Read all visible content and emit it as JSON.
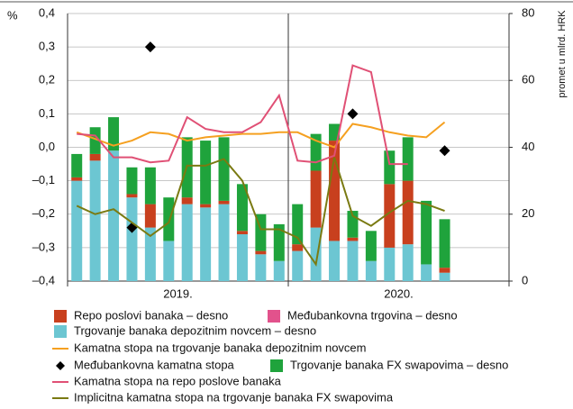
{
  "chart_data": {
    "type": "bar_line",
    "y_unit": "%",
    "y2_label": "promet u mlrd. HRK",
    "x_labels": [
      "2019.",
      "2020."
    ],
    "categories": [
      null,
      null,
      null,
      null,
      null,
      null,
      null,
      null,
      null,
      null,
      null,
      null,
      null,
      null,
      null,
      null,
      null,
      null,
      null,
      null,
      null,
      null,
      null,
      null
    ],
    "ylim": [
      -0.4,
      0.4
    ],
    "yticks": [
      {
        "value": 0.4,
        "label": "0,4"
      },
      {
        "value": 0.3,
        "label": "0,3"
      },
      {
        "value": 0.2,
        "label": "0,2"
      },
      {
        "value": 0.1,
        "label": "0,1"
      },
      {
        "value": 0.0,
        "label": "0,0"
      },
      {
        "value": -0.1,
        "label": "–0,1"
      },
      {
        "value": -0.2,
        "label": "–0,2"
      },
      {
        "value": -0.3,
        "label": "–0,3"
      },
      {
        "value": -0.4,
        "label": "–0,4"
      }
    ],
    "y2lim": [
      0,
      80
    ],
    "y2ticks": [
      0,
      20,
      40,
      60,
      80
    ],
    "grid": true,
    "series": [
      {
        "name": "Trgovanje banaka depozitnim novcem – desno",
        "kind": "bar",
        "axis": "y2",
        "color": "#6cc6d2",
        "values": [
          30,
          36,
          39,
          25,
          16,
          12,
          23,
          22,
          23,
          14,
          8,
          6,
          9,
          16,
          12,
          12,
          6,
          10,
          11,
          5,
          2.5,
          null,
          null,
          null
        ]
      },
      {
        "name": "Repo poslovi banaka – desno",
        "kind": "bar",
        "axis": "y2",
        "color": "#c8401e",
        "values": [
          1,
          2,
          0,
          1,
          7,
          0,
          2,
          1,
          1,
          1,
          1,
          0,
          2,
          17,
          30,
          1,
          0,
          19,
          19,
          0,
          1.5,
          null,
          null,
          null
        ]
      },
      {
        "name": "Međubankovna trgovina – desno",
        "kind": "bar",
        "axis": "y2",
        "color": "#e2528c",
        "values": [
          0,
          0,
          0,
          0,
          0,
          0,
          0,
          0,
          0,
          0,
          0,
          0,
          0,
          0,
          0,
          0,
          0,
          0,
          0,
          0,
          0,
          null,
          null,
          null
        ]
      },
      {
        "name": "Trgovanje banaka FX swapovima – desno",
        "kind": "bar",
        "axis": "y2",
        "color": "#1fa33c",
        "values": [
          7,
          8,
          10,
          8,
          11,
          13,
          18,
          19,
          19,
          14,
          11,
          11,
          12,
          11,
          5,
          8,
          9,
          10,
          13,
          19,
          14.5,
          null,
          null,
          null
        ]
      },
      {
        "name": "Kamatna stopa na trgovanje banaka depozitnim novcem",
        "kind": "line",
        "color": "#f5a020",
        "values": [
          0.045,
          0.025,
          0.005,
          0.02,
          0.045,
          0.04,
          0.02,
          0.03,
          0.035,
          0.04,
          0.04,
          0.045,
          0.045,
          0.02,
          0.0,
          0.07,
          0.06,
          0.045,
          0.035,
          0.03,
          0.075,
          null,
          null,
          null
        ]
      },
      {
        "name": "Međubankovna kamatna stopa",
        "kind": "point",
        "color": "#000000",
        "values": [
          null,
          null,
          null,
          -0.24,
          0.3,
          null,
          null,
          null,
          null,
          null,
          null,
          null,
          null,
          null,
          null,
          0.1,
          null,
          null,
          null,
          null,
          -0.01,
          null,
          null,
          null
        ]
      },
      {
        "name": "Kamatna stopa na repo poslove banaka",
        "kind": "line",
        "color": "#e05075",
        "values": [
          0.04,
          0.035,
          -0.03,
          -0.03,
          -0.045,
          -0.04,
          0.09,
          0.055,
          0.045,
          0.045,
          0.075,
          0.155,
          -0.04,
          -0.045,
          -0.025,
          0.245,
          0.225,
          -0.05,
          -0.05,
          null,
          null,
          null,
          null,
          null
        ]
      },
      {
        "name": "Implicitna kamatna stopa na trgovanje banaka FX swapovima",
        "kind": "line",
        "color": "#7a7a12",
        "values": [
          -0.175,
          -0.2,
          -0.185,
          -0.225,
          -0.265,
          -0.225,
          -0.055,
          -0.055,
          -0.035,
          -0.1,
          -0.245,
          -0.245,
          -0.27,
          -0.35,
          -0.03,
          -0.205,
          -0.235,
          -0.195,
          -0.16,
          -0.17,
          -0.19,
          null,
          null,
          null
        ]
      }
    ]
  }
}
